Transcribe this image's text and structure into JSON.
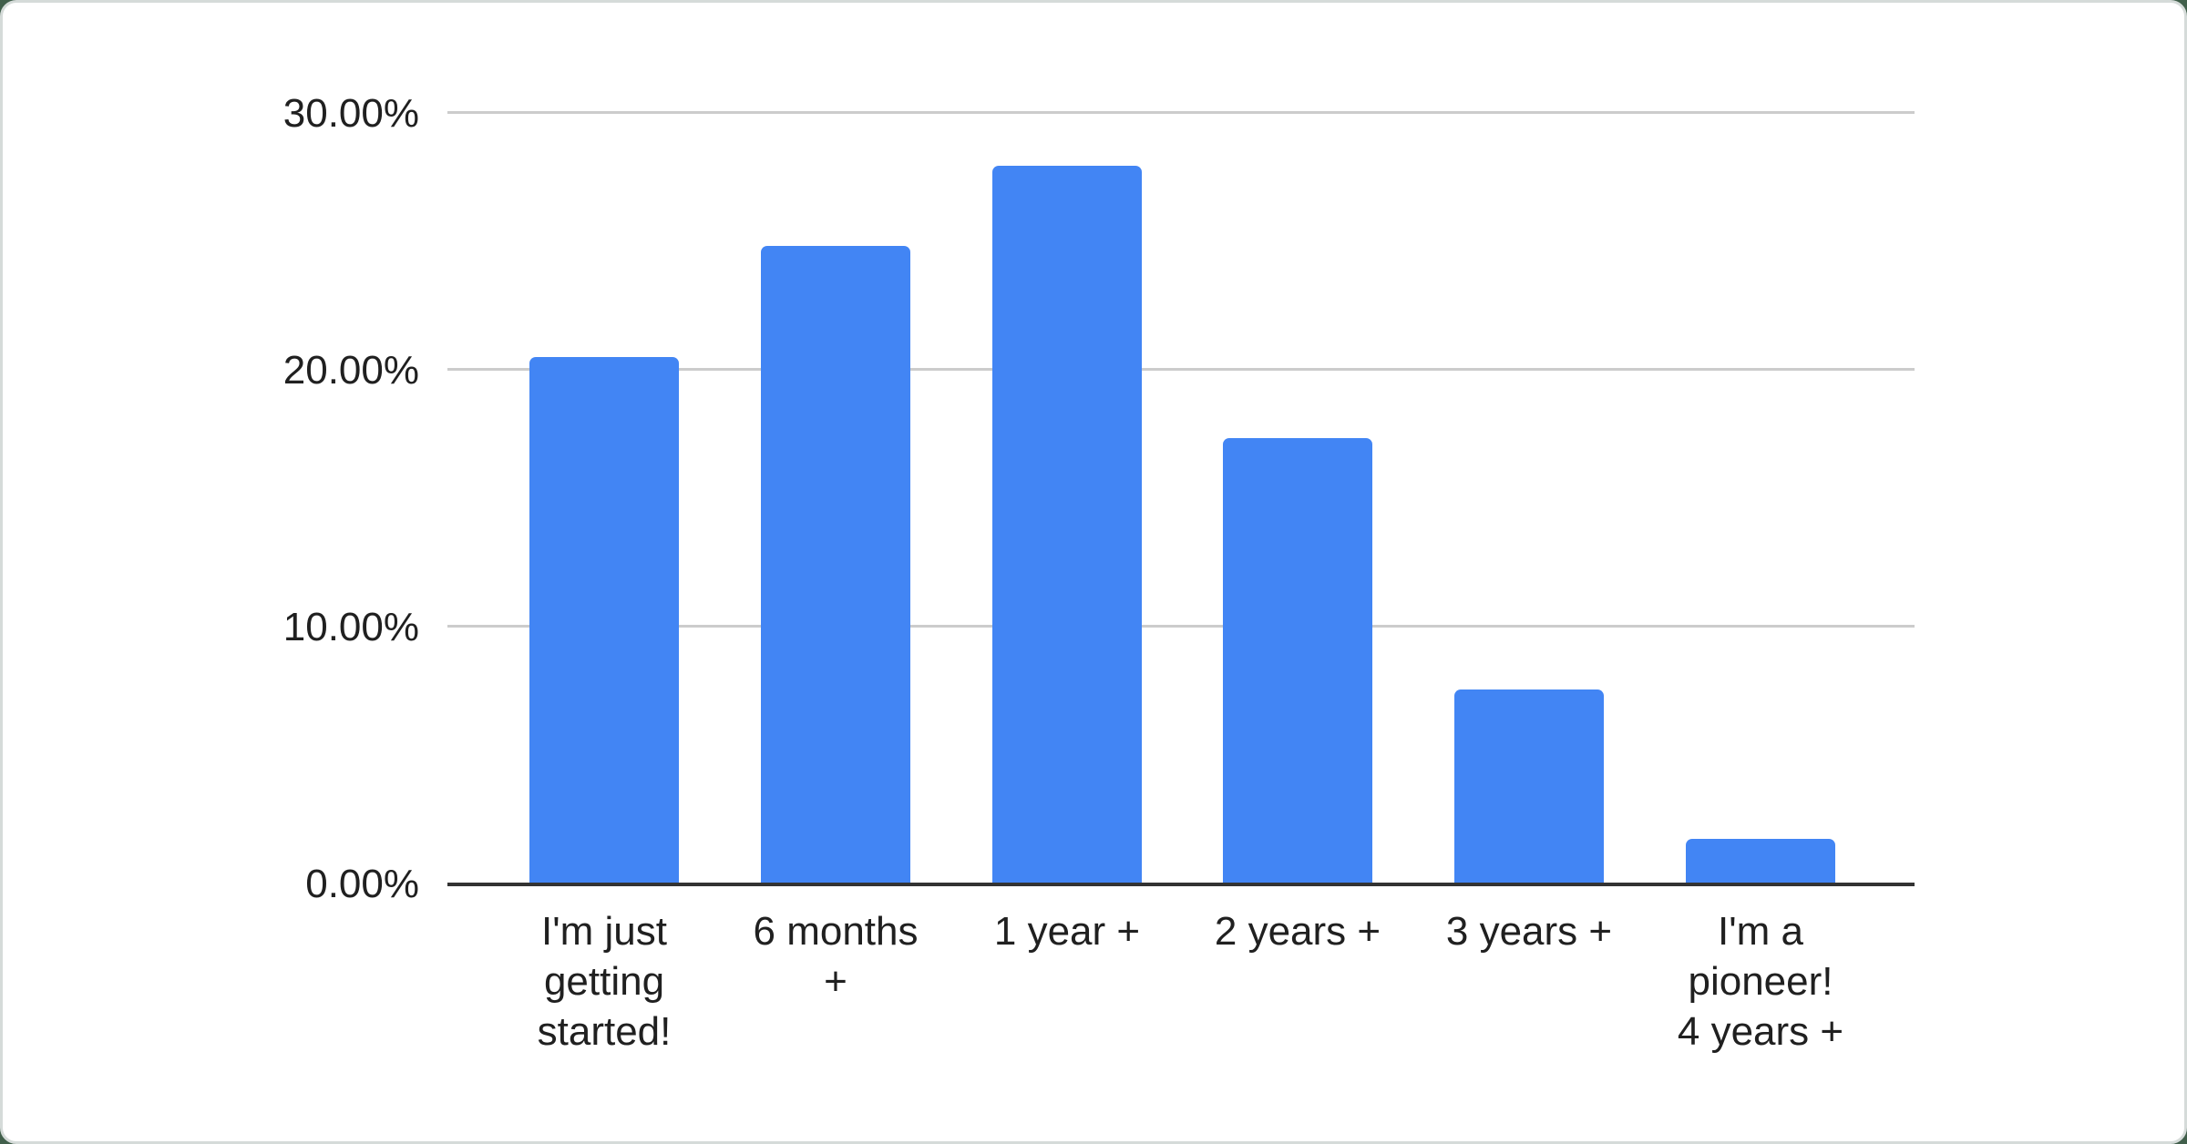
{
  "chart_data": {
    "type": "bar",
    "title": "",
    "xlabel": "",
    "ylabel": "",
    "unit": "%",
    "categories": [
      "I'm just getting started!",
      "6 months +",
      "1 year +",
      "2 years +",
      "3 years +",
      "I'm a pioneer! 4 years +"
    ],
    "category_lines": [
      [
        "I'm just",
        "getting",
        "started!"
      ],
      [
        "6 months",
        "+"
      ],
      [
        "1 year +"
      ],
      [
        "2 years +"
      ],
      [
        "3 years +"
      ],
      [
        "I'm a",
        "pioneer!",
        "4 years +"
      ]
    ],
    "values": [
      20.45,
      24.8,
      27.9,
      17.3,
      7.5,
      1.7
    ],
    "yticks": [
      {
        "label": "0.00%",
        "value": 0
      },
      {
        "label": "10.00%",
        "value": 10
      },
      {
        "label": "20.00%",
        "value": 20
      },
      {
        "label": "30.00%",
        "value": 30
      }
    ],
    "ylim": [
      0,
      30
    ],
    "grid": true,
    "legend": "none",
    "colors": {
      "bar": "#4285f4",
      "gridline": "#cccccc",
      "axis_line": "#333333",
      "text": "#202020",
      "card_background": "#ffffff",
      "card_border": "#d5dbd9",
      "page_background": "#415f4b"
    }
  }
}
